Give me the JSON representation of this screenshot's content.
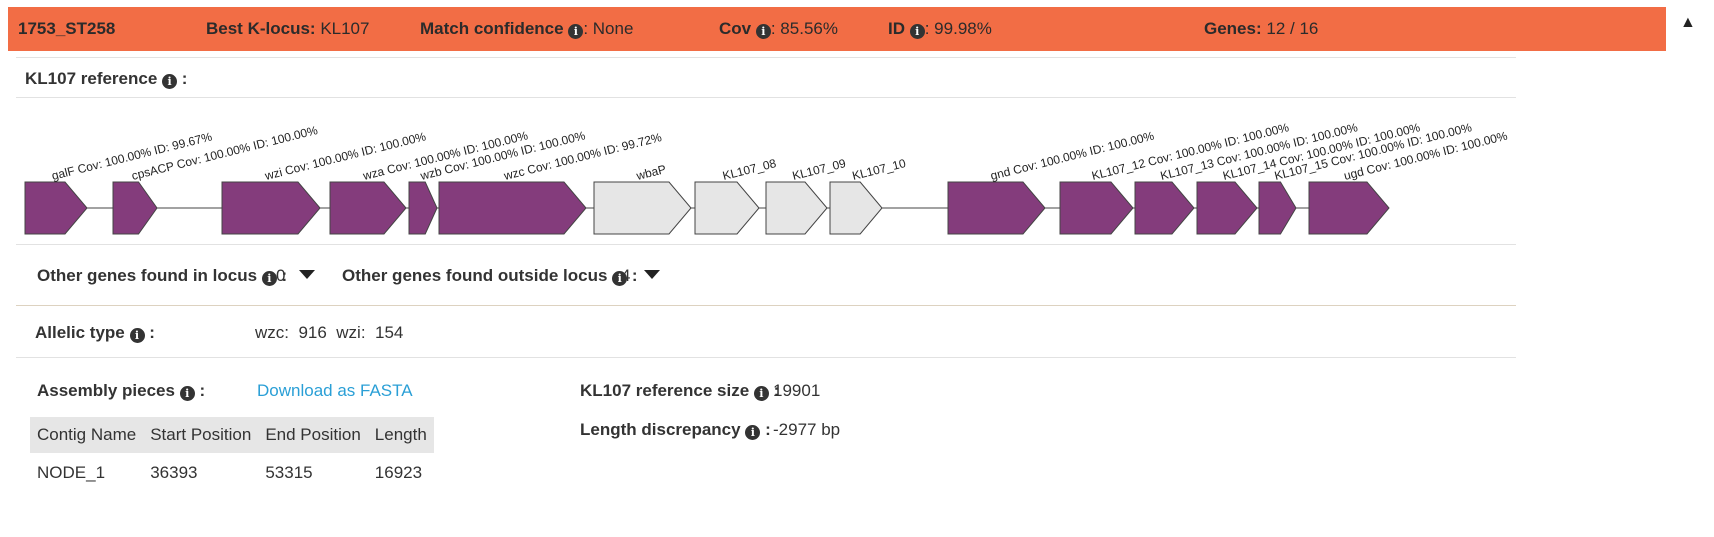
{
  "header": {
    "sample": "1753_ST258",
    "best_locus_label": "Best K-locus:",
    "best_locus_value": "KL107",
    "match_conf_label": "Match confidence",
    "match_conf_value": ": None",
    "cov_label": "Cov",
    "cov_value": ": 85.56%",
    "id_label": "ID",
    "id_value": ": 99.98%",
    "genes_label": "Genes:",
    "genes_value": "12 / 16",
    "collapse_icon": "▲"
  },
  "reference_title": "KL107 reference",
  "colon": ":",
  "info_glyph": "i",
  "genes": [
    {
      "label": "galF Cov: 100.00% ID: 99.67%",
      "found": true
    },
    {
      "label": "cpsACP Cov: 100.00% ID: 100.00%",
      "found": true
    },
    {
      "label": "wzi Cov: 100.00% ID: 100.00%",
      "found": true
    },
    {
      "label": "wza Cov: 100.00% ID: 100.00%",
      "found": true
    },
    {
      "label": "wzb Cov: 100.00% ID: 100.00%",
      "found": true
    },
    {
      "label": "wzc Cov: 100.00% ID: 99.72%",
      "found": true
    },
    {
      "label": "wbaP",
      "found": false
    },
    {
      "label": "KL107_08",
      "found": false
    },
    {
      "label": "KL107_09",
      "found": false
    },
    {
      "label": "KL107_10",
      "found": false
    },
    {
      "label": "gnd Cov: 100.00% ID: 100.00%",
      "found": true
    },
    {
      "label": "KL107_12 Cov: 100.00% ID: 100.00%",
      "found": true
    },
    {
      "label": "KL107_13 Cov: 100.00% ID: 100.00%",
      "found": true
    },
    {
      "label": "KL107_14 Cov: 100.00% ID: 100.00%",
      "found": true
    },
    {
      "label": "KL107_15 Cov: 100.00% ID: 100.00%",
      "found": true
    },
    {
      "label": "ugd Cov: 100.00% ID: 100.00%",
      "found": true
    }
  ],
  "colors": {
    "found": "#843c7c",
    "missing": "#e6e6e6",
    "header": "#f26d45",
    "link": "#2a9fd6"
  },
  "other_genes": {
    "in_locus_label": "Other genes found in locus",
    "in_locus_value": "0",
    "outside_label": "Other genes found outside locus",
    "outside_value": "4"
  },
  "allelic": {
    "label": "Allelic type",
    "wzc_label": "wzc:",
    "wzc_value": "916",
    "wzi_label": "wzi:",
    "wzi_value": "154"
  },
  "assembly": {
    "label": "Assembly pieces",
    "download": "Download as FASTA",
    "columns": [
      "Contig Name",
      "Start Position",
      "End Position",
      "Length"
    ],
    "rows": [
      [
        "NODE_1",
        "36393",
        "53315",
        "16923"
      ]
    ]
  },
  "reference": {
    "size_label": "KL107 reference size",
    "size_value": "19901",
    "discrepancy_label": "Length discrepancy",
    "discrepancy_value": "-2977 bp"
  }
}
